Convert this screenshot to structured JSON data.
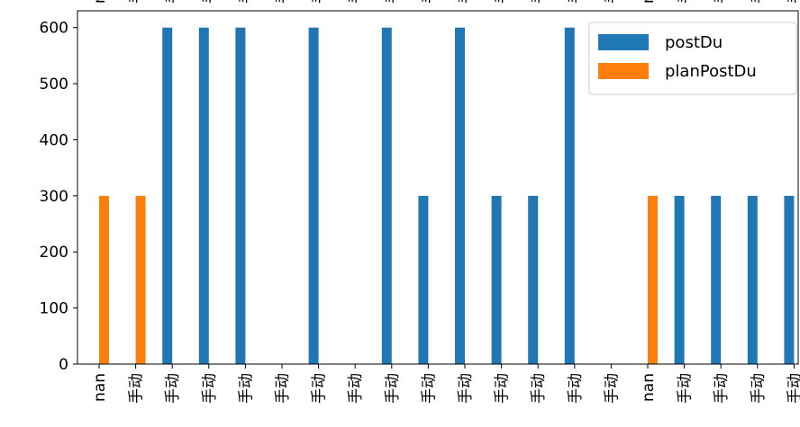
{
  "chart_data": {
    "type": "bar",
    "categories": [
      "nan",
      "手动",
      "手动",
      "手动",
      "手动",
      "手动",
      "手动",
      "手动",
      "手动",
      "手动",
      "手动",
      "手动",
      "手动",
      "手动",
      "手动",
      "nan",
      "手动",
      "手动",
      "手动",
      "手动"
    ],
    "series": [
      {
        "name": "postDu",
        "color": "#1f77b4",
        "values": [
          0,
          0,
          600,
          600,
          600,
          0,
          600,
          0,
          600,
          300,
          600,
          300,
          300,
          600,
          0,
          0,
          300,
          300,
          300,
          300
        ]
      },
      {
        "name": "planPostDu",
        "color": "#ff7f0e",
        "values": [
          300,
          300,
          0,
          0,
          0,
          0,
          0,
          0,
          0,
          0,
          0,
          0,
          0,
          0,
          0,
          300,
          0,
          0,
          0,
          0
        ]
      }
    ],
    "title": "",
    "xlabel": "",
    "ylabel": "",
    "ylim": [
      0,
      630
    ],
    "yticks": [
      0,
      100,
      200,
      300,
      400,
      500,
      600
    ],
    "grid": false,
    "legend": "top-right"
  }
}
